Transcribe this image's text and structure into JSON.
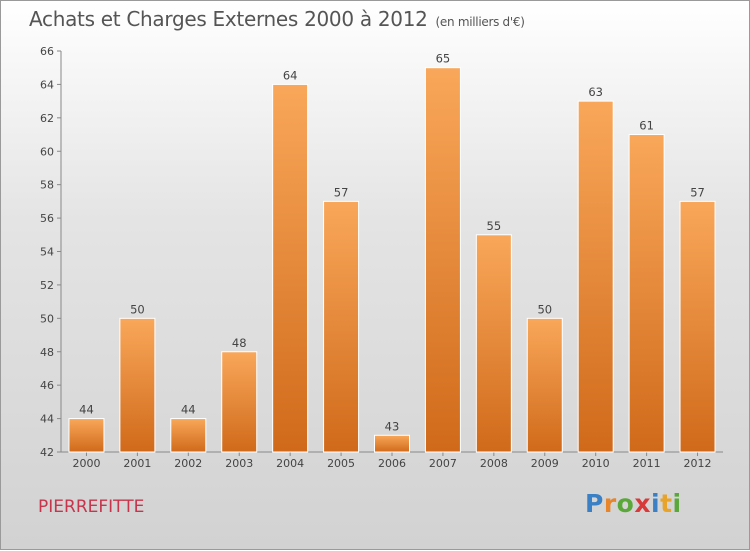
{
  "title": "Achats et Charges Externes 2000 à 2012",
  "unit": "(en milliers d'€)",
  "town": "PIERREFITTE",
  "logo": {
    "letters": [
      "P",
      "r",
      "o",
      "x",
      "i",
      "t",
      "i"
    ],
    "colors": [
      "#3b7fc4",
      "#e8842a",
      "#5aa83a",
      "#d83a3a",
      "#3b7fc4",
      "#e8a32a",
      "#5aa83a"
    ]
  },
  "colors": {
    "bar_top": "#f9a75a",
    "bar_bottom": "#d06a1a",
    "town": "#c8344c"
  },
  "chart_data": {
    "type": "bar",
    "categories": [
      "2000",
      "2001",
      "2002",
      "2003",
      "2004",
      "2005",
      "2006",
      "2007",
      "2008",
      "2009",
      "2010",
      "2011",
      "2012"
    ],
    "values": [
      44,
      50,
      44,
      48,
      64,
      57,
      43,
      65,
      55,
      50,
      63,
      61,
      57
    ],
    "ylim": [
      42,
      66
    ],
    "yticks": [
      42,
      44,
      46,
      48,
      50,
      52,
      54,
      56,
      58,
      60,
      62,
      64,
      66
    ],
    "grid": false
  }
}
